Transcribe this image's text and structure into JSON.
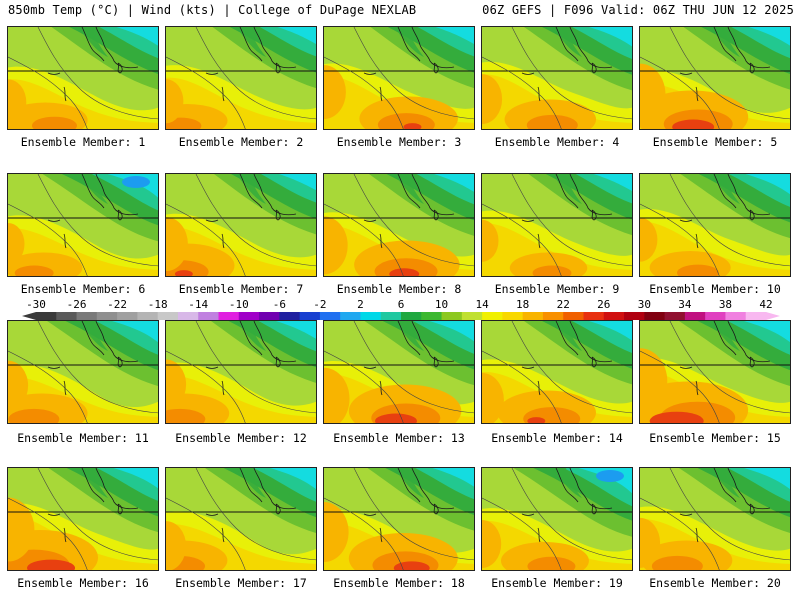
{
  "header": {
    "left": "850mb Temp (°C) | Wind (kts) | College of DuPage NEXLAB",
    "right": "06Z GEFS | F096 Valid: 06Z THU JUN 12 2025"
  },
  "panels": [
    {
      "label": "Ensemble Member: 1",
      "variant": {
        "cool": 0.55,
        "hot": 0.35,
        "seed": 1
      }
    },
    {
      "label": "Ensemble Member: 2",
      "variant": {
        "cool": 0.45,
        "hot": 0.3,
        "seed": 2
      }
    },
    {
      "label": "Ensemble Member: 3",
      "variant": {
        "cool": 0.45,
        "hot": 0.55,
        "seed": 3
      }
    },
    {
      "label": "Ensemble Member: 4",
      "variant": {
        "cool": 0.6,
        "hot": 0.45,
        "seed": 4
      }
    },
    {
      "label": "Ensemble Member: 5",
      "variant": {
        "cool": 0.55,
        "hot": 0.75,
        "seed": 5
      }
    },
    {
      "label": "Ensemble Member: 6",
      "variant": {
        "cool": 0.85,
        "hot": 0.25,
        "seed": 6
      }
    },
    {
      "label": "Ensemble Member: 7",
      "variant": {
        "cool": 0.4,
        "hot": 0.55,
        "seed": 7
      }
    },
    {
      "label": "Ensemble Member: 8",
      "variant": {
        "cool": 0.5,
        "hot": 0.65,
        "seed": 8
      }
    },
    {
      "label": "Ensemble Member: 9",
      "variant": {
        "cool": 0.45,
        "hot": 0.25,
        "seed": 9
      }
    },
    {
      "label": "Ensemble Member: 10",
      "variant": {
        "cool": 0.65,
        "hot": 0.3,
        "seed": 10
      }
    },
    {
      "label": "Ensemble Member: 11",
      "variant": {
        "cool": 0.7,
        "hot": 0.45,
        "seed": 11
      }
    },
    {
      "label": "Ensemble Member: 12",
      "variant": {
        "cool": 0.5,
        "hot": 0.45,
        "seed": 12
      }
    },
    {
      "label": "Ensemble Member: 13",
      "variant": {
        "cool": 0.65,
        "hot": 0.75,
        "seed": 13
      }
    },
    {
      "label": "Ensemble Member: 14",
      "variant": {
        "cool": 0.6,
        "hot": 0.55,
        "seed": 14
      }
    },
    {
      "label": "Ensemble Member: 15",
      "variant": {
        "cool": 0.7,
        "hot": 0.85,
        "seed": 15
      }
    },
    {
      "label": "Ensemble Member: 16",
      "variant": {
        "cool": 0.65,
        "hot": 0.8,
        "seed": 16
      }
    },
    {
      "label": "Ensemble Member: 17",
      "variant": {
        "cool": 0.7,
        "hot": 0.45,
        "seed": 17
      }
    },
    {
      "label": "Ensemble Member: 18",
      "variant": {
        "cool": 0.55,
        "hot": 0.7,
        "seed": 18
      }
    },
    {
      "label": "Ensemble Member: 19",
      "variant": {
        "cool": 0.95,
        "hot": 0.4,
        "seed": 19
      }
    },
    {
      "label": "Ensemble Member: 20",
      "variant": {
        "cool": 0.7,
        "hot": 0.45,
        "seed": 20
      }
    }
  ],
  "colorbar": {
    "labels": [
      "-30",
      "-26",
      "-22",
      "-18",
      "-14",
      "-10",
      "-6",
      "-2",
      "2",
      "6",
      "10",
      "14",
      "18",
      "22",
      "26",
      "30",
      "34",
      "38",
      "42"
    ],
    "colors": [
      "#3a3a3a",
      "#5a5a5a",
      "#7a7a7a",
      "#8f8f8f",
      "#a0a0a0",
      "#b4b4b4",
      "#c8c8c8",
      "#d8b8e8",
      "#c080e0",
      "#e020e0",
      "#a000c8",
      "#7000b0",
      "#2020a0",
      "#1840d0",
      "#2070f0",
      "#20a8f0",
      "#00d8e8",
      "#20c8a0",
      "#20a840",
      "#3cb830",
      "#8cc820",
      "#c0e030",
      "#f0f000",
      "#f8d800",
      "#f8b400",
      "#f89000",
      "#f06000",
      "#e83010",
      "#d01010",
      "#b00010",
      "#800010",
      "#901030",
      "#c01080",
      "#e040c0",
      "#f080e0",
      "#f8b8f0"
    ]
  }
}
